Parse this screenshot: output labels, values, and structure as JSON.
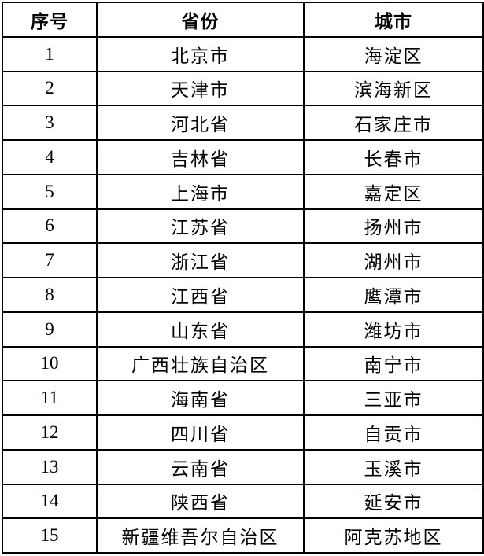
{
  "table": {
    "title": "province-city-table",
    "colors": {
      "border": "#000000",
      "background": "#ffffff",
      "text": "#000000"
    },
    "headers": {
      "no": "序号",
      "province": "省份",
      "city": "城市"
    },
    "rows": [
      {
        "no": "1",
        "province": "北京市",
        "city": "海淀区"
      },
      {
        "no": "2",
        "province": "天津市",
        "city": "滨海新区"
      },
      {
        "no": "3",
        "province": "河北省",
        "city": "石家庄市"
      },
      {
        "no": "4",
        "province": "吉林省",
        "city": "长春市"
      },
      {
        "no": "5",
        "province": "上海市",
        "city": "嘉定区"
      },
      {
        "no": "6",
        "province": "江苏省",
        "city": "扬州市"
      },
      {
        "no": "7",
        "province": "浙江省",
        "city": "湖州市"
      },
      {
        "no": "8",
        "province": "江西省",
        "city": "鹰潭市"
      },
      {
        "no": "9",
        "province": "山东省",
        "city": "潍坊市"
      },
      {
        "no": "10",
        "province": "广西壮族自治区",
        "city": "南宁市"
      },
      {
        "no": "11",
        "province": "海南省",
        "city": "三亚市"
      },
      {
        "no": "12",
        "province": "四川省",
        "city": "自贡市"
      },
      {
        "no": "13",
        "province": "云南省",
        "city": "玉溪市"
      },
      {
        "no": "14",
        "province": "陕西省",
        "city": "延安市"
      },
      {
        "no": "15",
        "province": "新疆维吾尔自治区",
        "city": "阿克苏地区"
      }
    ]
  }
}
